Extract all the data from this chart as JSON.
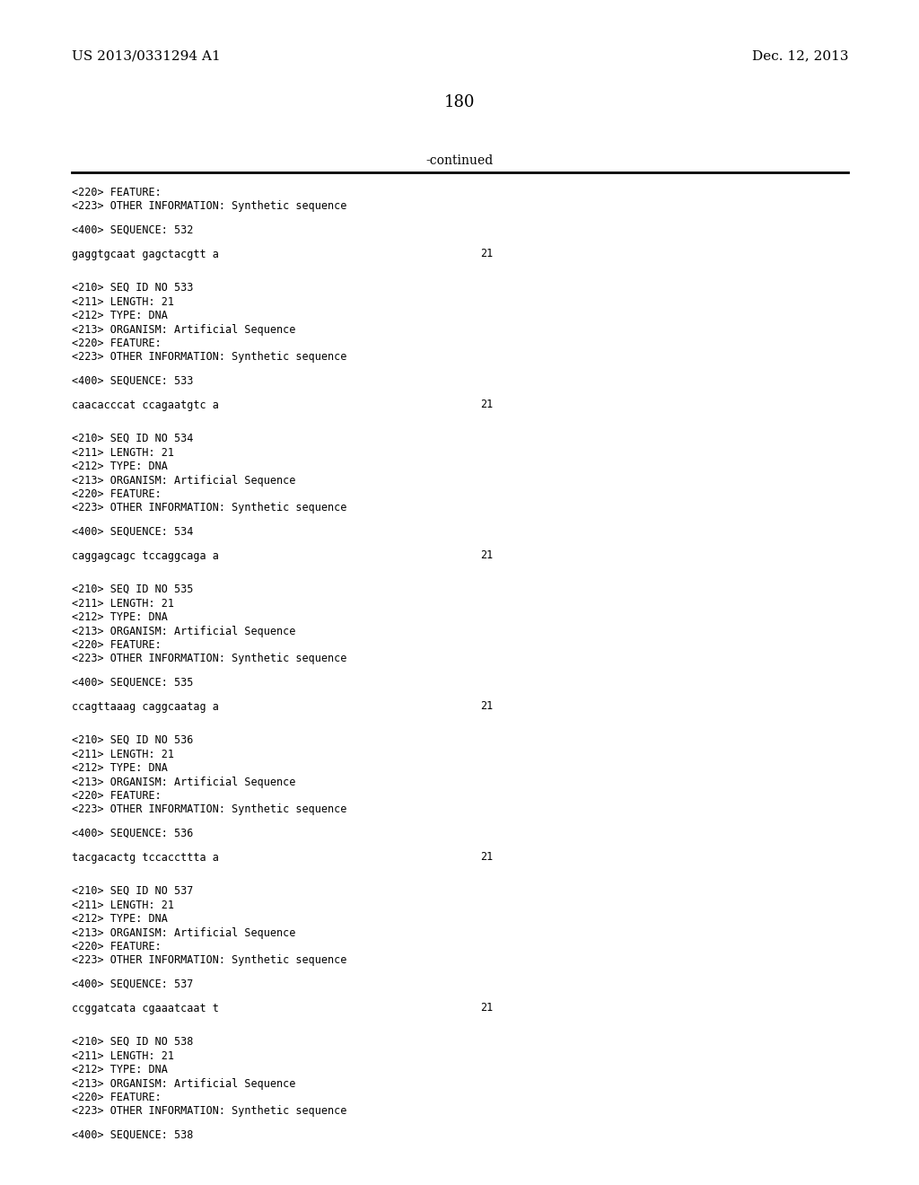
{
  "page_num": "180",
  "top_left": "US 2013/0331294 A1",
  "top_right": "Dec. 12, 2013",
  "continued_label": "-continued",
  "bg_color": "#ffffff",
  "text_color": "#000000",
  "content": [
    {
      "type": "feature_block",
      "lines": [
        "<220> FEATURE:",
        "<223> OTHER INFORMATION: Synthetic sequence"
      ]
    },
    {
      "type": "blank"
    },
    {
      "type": "seq_line",
      "text": "<400> SEQUENCE: 532"
    },
    {
      "type": "blank"
    },
    {
      "type": "sequence_line",
      "seq": "gaggtgcaat gagctacgtt a",
      "num": "21"
    },
    {
      "type": "blank"
    },
    {
      "type": "blank"
    },
    {
      "type": "entry",
      "lines": [
        "<210> SEQ ID NO 533",
        "<211> LENGTH: 21",
        "<212> TYPE: DNA",
        "<213> ORGANISM: Artificial Sequence",
        "<220> FEATURE:",
        "<223> OTHER INFORMATION: Synthetic sequence"
      ]
    },
    {
      "type": "blank"
    },
    {
      "type": "seq_line",
      "text": "<400> SEQUENCE: 533"
    },
    {
      "type": "blank"
    },
    {
      "type": "sequence_line",
      "seq": "caacacccat ccagaatgtc a",
      "num": "21"
    },
    {
      "type": "blank"
    },
    {
      "type": "blank"
    },
    {
      "type": "entry",
      "lines": [
        "<210> SEQ ID NO 534",
        "<211> LENGTH: 21",
        "<212> TYPE: DNA",
        "<213> ORGANISM: Artificial Sequence",
        "<220> FEATURE:",
        "<223> OTHER INFORMATION: Synthetic sequence"
      ]
    },
    {
      "type": "blank"
    },
    {
      "type": "seq_line",
      "text": "<400> SEQUENCE: 534"
    },
    {
      "type": "blank"
    },
    {
      "type": "sequence_line",
      "seq": "caggagcagc tccaggcaga a",
      "num": "21"
    },
    {
      "type": "blank"
    },
    {
      "type": "blank"
    },
    {
      "type": "entry",
      "lines": [
        "<210> SEQ ID NO 535",
        "<211> LENGTH: 21",
        "<212> TYPE: DNA",
        "<213> ORGANISM: Artificial Sequence",
        "<220> FEATURE:",
        "<223> OTHER INFORMATION: Synthetic sequence"
      ]
    },
    {
      "type": "blank"
    },
    {
      "type": "seq_line",
      "text": "<400> SEQUENCE: 535"
    },
    {
      "type": "blank"
    },
    {
      "type": "sequence_line",
      "seq": "ccagttaaag caggcaatag a",
      "num": "21"
    },
    {
      "type": "blank"
    },
    {
      "type": "blank"
    },
    {
      "type": "entry",
      "lines": [
        "<210> SEQ ID NO 536",
        "<211> LENGTH: 21",
        "<212> TYPE: DNA",
        "<213> ORGANISM: Artificial Sequence",
        "<220> FEATURE:",
        "<223> OTHER INFORMATION: Synthetic sequence"
      ]
    },
    {
      "type": "blank"
    },
    {
      "type": "seq_line",
      "text": "<400> SEQUENCE: 536"
    },
    {
      "type": "blank"
    },
    {
      "type": "sequence_line",
      "seq": "tacgacactg tccaccttta a",
      "num": "21"
    },
    {
      "type": "blank"
    },
    {
      "type": "blank"
    },
    {
      "type": "entry",
      "lines": [
        "<210> SEQ ID NO 537",
        "<211> LENGTH: 21",
        "<212> TYPE: DNA",
        "<213> ORGANISM: Artificial Sequence",
        "<220> FEATURE:",
        "<223> OTHER INFORMATION: Synthetic sequence"
      ]
    },
    {
      "type": "blank"
    },
    {
      "type": "seq_line",
      "text": "<400> SEQUENCE: 537"
    },
    {
      "type": "blank"
    },
    {
      "type": "sequence_line",
      "seq": "ccggatcata cgaaatcaat t",
      "num": "21"
    },
    {
      "type": "blank"
    },
    {
      "type": "blank"
    },
    {
      "type": "entry",
      "lines": [
        "<210> SEQ ID NO 538",
        "<211> LENGTH: 21",
        "<212> TYPE: DNA",
        "<213> ORGANISM: Artificial Sequence",
        "<220> FEATURE:",
        "<223> OTHER INFORMATION: Synthetic sequence"
      ]
    },
    {
      "type": "blank"
    },
    {
      "type": "seq_line",
      "text": "<400> SEQUENCE: 538"
    }
  ]
}
